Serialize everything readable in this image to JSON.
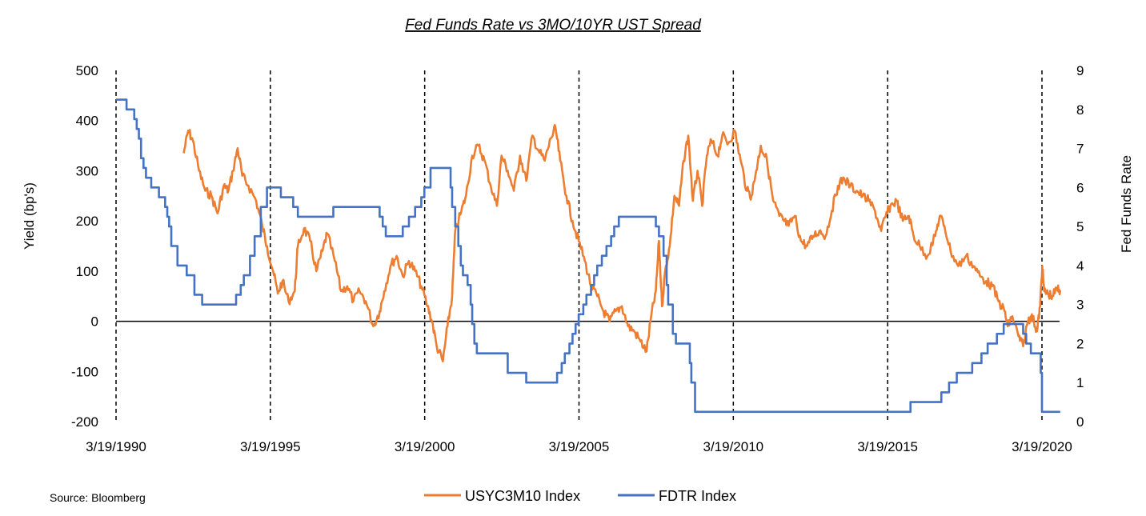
{
  "chart_data": {
    "type": "line",
    "title": "Fed Funds Rate vs 3MO/10YR UST Spread",
    "ylabel": "Yield  (bp's)",
    "y2label": "Fed Funds Rate",
    "source": "Source: Bloomberg",
    "x_range": [
      1990.21,
      2020.8
    ],
    "ylim": [
      -200,
      500
    ],
    "y_ticks": [
      500,
      400,
      300,
      200,
      100,
      0,
      -100,
      -200
    ],
    "y2lim": [
      0,
      9
    ],
    "y2_ticks": [
      9,
      8,
      7,
      6,
      5,
      4,
      3,
      2,
      1,
      0
    ],
    "x_ticks": [
      {
        "label": "3/19/1990",
        "value": 1990.21
      },
      {
        "label": "3/19/1995",
        "value": 1995.21
      },
      {
        "label": "3/19/2000",
        "value": 2000.21
      },
      {
        "label": "3/19/2005",
        "value": 2005.21
      },
      {
        "label": "3/19/2010",
        "value": 2010.21
      },
      {
        "label": "3/19/2015",
        "value": 2015.21
      },
      {
        "label": "3/19/2020",
        "value": 2020.21
      }
    ],
    "vertical_dashed_lines_at": [
      1990.21,
      1995.21,
      2000.21,
      2005.21,
      2010.21,
      2015.21,
      2020.21
    ],
    "zero_line": 0,
    "legend": [
      "USYC3M10 Index",
      "FDTR Index"
    ],
    "legend_position": "bottom-center",
    "series": [
      {
        "name": "USYC3M10 Index",
        "axis": "left",
        "color": "#ED7D31",
        "points": [
          [
            1992.4,
            335
          ],
          [
            1992.55,
            380
          ],
          [
            1992.7,
            360
          ],
          [
            1992.9,
            300
          ],
          [
            1993.1,
            260
          ],
          [
            1993.3,
            250
          ],
          [
            1993.5,
            215
          ],
          [
            1993.7,
            270
          ],
          [
            1993.85,
            260
          ],
          [
            1994.0,
            300
          ],
          [
            1994.15,
            345
          ],
          [
            1994.3,
            290
          ],
          [
            1994.5,
            270
          ],
          [
            1994.75,
            240
          ],
          [
            1994.95,
            190
          ],
          [
            1995.1,
            150
          ],
          [
            1995.3,
            100
          ],
          [
            1995.45,
            55
          ],
          [
            1995.6,
            80
          ],
          [
            1995.8,
            40
          ],
          [
            1996.0,
            60
          ],
          [
            1996.1,
            150
          ],
          [
            1996.3,
            185
          ],
          [
            1996.5,
            160
          ],
          [
            1996.7,
            100
          ],
          [
            1996.9,
            140
          ],
          [
            1997.05,
            175
          ],
          [
            1997.3,
            120
          ],
          [
            1997.5,
            60
          ],
          [
            1997.7,
            70
          ],
          [
            1997.9,
            40
          ],
          [
            1998.1,
            60
          ],
          [
            1998.3,
            40
          ],
          [
            1998.55,
            -10
          ],
          [
            1998.75,
            20
          ],
          [
            1998.9,
            60
          ],
          [
            1999.1,
            110
          ],
          [
            1999.3,
            130
          ],
          [
            1999.5,
            90
          ],
          [
            1999.7,
            120
          ],
          [
            1999.9,
            100
          ],
          [
            2000.1,
            70
          ],
          [
            2000.3,
            30
          ],
          [
            2000.45,
            0
          ],
          [
            2000.6,
            -50
          ],
          [
            2000.8,
            -80
          ],
          [
            2000.95,
            -10
          ],
          [
            2001.1,
            50
          ],
          [
            2001.2,
            180
          ],
          [
            2001.4,
            220
          ],
          [
            2001.55,
            250
          ],
          [
            2001.75,
            330
          ],
          [
            2001.95,
            350
          ],
          [
            2002.15,
            320
          ],
          [
            2002.35,
            270
          ],
          [
            2002.55,
            230
          ],
          [
            2002.7,
            330
          ],
          [
            2002.9,
            300
          ],
          [
            2003.1,
            260
          ],
          [
            2003.3,
            330
          ],
          [
            2003.5,
            280
          ],
          [
            2003.7,
            370
          ],
          [
            2003.9,
            340
          ],
          [
            2004.1,
            320
          ],
          [
            2004.3,
            365
          ],
          [
            2004.45,
            385
          ],
          [
            2004.6,
            320
          ],
          [
            2004.8,
            250
          ],
          [
            2005.0,
            200
          ],
          [
            2005.2,
            160
          ],
          [
            2005.4,
            120
          ],
          [
            2005.6,
            70
          ],
          [
            2005.8,
            50
          ],
          [
            2006.0,
            20
          ],
          [
            2006.2,
            0
          ],
          [
            2006.4,
            20
          ],
          [
            2006.6,
            30
          ],
          [
            2006.8,
            -10
          ],
          [
            2007.0,
            -20
          ],
          [
            2007.2,
            -40
          ],
          [
            2007.4,
            -60
          ],
          [
            2007.55,
            10
          ],
          [
            2007.7,
            60
          ],
          [
            2007.8,
            160
          ],
          [
            2007.9,
            30
          ],
          [
            2008.0,
            100
          ],
          [
            2008.15,
            150
          ],
          [
            2008.3,
            250
          ],
          [
            2008.45,
            230
          ],
          [
            2008.6,
            320
          ],
          [
            2008.75,
            370
          ],
          [
            2008.9,
            240
          ],
          [
            2009.05,
            300
          ],
          [
            2009.2,
            230
          ],
          [
            2009.35,
            330
          ],
          [
            2009.5,
            360
          ],
          [
            2009.7,
            330
          ],
          [
            2009.85,
            370
          ],
          [
            2010.05,
            355
          ],
          [
            2010.25,
            380
          ],
          [
            2010.45,
            320
          ],
          [
            2010.65,
            260
          ],
          [
            2010.8,
            250
          ],
          [
            2010.95,
            300
          ],
          [
            2011.1,
            350
          ],
          [
            2011.3,
            320
          ],
          [
            2011.5,
            240
          ],
          [
            2011.7,
            210
          ],
          [
            2011.85,
            200
          ],
          [
            2012.0,
            190
          ],
          [
            2012.2,
            210
          ],
          [
            2012.4,
            160
          ],
          [
            2012.6,
            150
          ],
          [
            2012.8,
            170
          ],
          [
            2013.0,
            180
          ],
          [
            2013.2,
            170
          ],
          [
            2013.4,
            220
          ],
          [
            2013.6,
            270
          ],
          [
            2013.8,
            285
          ],
          [
            2014.0,
            270
          ],
          [
            2014.2,
            260
          ],
          [
            2014.4,
            250
          ],
          [
            2014.6,
            240
          ],
          [
            2014.8,
            220
          ],
          [
            2015.0,
            180
          ],
          [
            2015.15,
            210
          ],
          [
            2015.3,
            230
          ],
          [
            2015.5,
            240
          ],
          [
            2015.7,
            200
          ],
          [
            2015.9,
            210
          ],
          [
            2016.05,
            170
          ],
          [
            2016.25,
            150
          ],
          [
            2016.5,
            130
          ],
          [
            2016.75,
            170
          ],
          [
            2016.9,
            210
          ],
          [
            2017.05,
            190
          ],
          [
            2017.25,
            140
          ],
          [
            2017.5,
            110
          ],
          [
            2017.75,
            130
          ],
          [
            2018.0,
            110
          ],
          [
            2018.2,
            90
          ],
          [
            2018.4,
            80
          ],
          [
            2018.6,
            70
          ],
          [
            2018.8,
            40
          ],
          [
            2019.0,
            20
          ],
          [
            2019.1,
            -10
          ],
          [
            2019.25,
            10
          ],
          [
            2019.45,
            -30
          ],
          [
            2019.6,
            -50
          ],
          [
            2019.75,
            0
          ],
          [
            2019.85,
            10
          ],
          [
            2019.95,
            0
          ],
          [
            2020.05,
            -20
          ],
          [
            2020.15,
            30
          ],
          [
            2020.22,
            110
          ],
          [
            2020.28,
            60
          ],
          [
            2020.4,
            55
          ],
          [
            2020.55,
            50
          ],
          [
            2020.7,
            65
          ],
          [
            2020.8,
            62
          ]
        ]
      },
      {
        "name": "FDTR Index",
        "axis": "right",
        "color": "#4472C4",
        "steps": [
          [
            1990.0,
            8.25
          ],
          [
            1990.55,
            8.0
          ],
          [
            1990.8,
            7.75
          ],
          [
            1990.88,
            7.5
          ],
          [
            1990.95,
            7.25
          ],
          [
            1991.02,
            6.75
          ],
          [
            1991.1,
            6.5
          ],
          [
            1991.18,
            6.25
          ],
          [
            1991.35,
            6.0
          ],
          [
            1991.6,
            5.75
          ],
          [
            1991.8,
            5.5
          ],
          [
            1991.87,
            5.25
          ],
          [
            1991.93,
            5.0
          ],
          [
            1992.0,
            4.5
          ],
          [
            1992.2,
            4.0
          ],
          [
            1992.5,
            3.75
          ],
          [
            1992.75,
            3.25
          ],
          [
            1993.0,
            3.0
          ],
          [
            1994.1,
            3.25
          ],
          [
            1994.25,
            3.5
          ],
          [
            1994.35,
            3.75
          ],
          [
            1994.55,
            4.25
          ],
          [
            1994.7,
            4.75
          ],
          [
            1994.9,
            5.5
          ],
          [
            1995.1,
            6.0
          ],
          [
            1995.55,
            5.75
          ],
          [
            1995.95,
            5.5
          ],
          [
            1996.1,
            5.25
          ],
          [
            1997.25,
            5.5
          ],
          [
            1998.75,
            5.25
          ],
          [
            1998.85,
            5.0
          ],
          [
            1998.95,
            4.75
          ],
          [
            1999.5,
            5.0
          ],
          [
            1999.7,
            5.25
          ],
          [
            1999.9,
            5.5
          ],
          [
            2000.1,
            5.75
          ],
          [
            2000.2,
            6.0
          ],
          [
            2000.4,
            6.5
          ],
          [
            2001.05,
            6.0
          ],
          [
            2001.1,
            5.5
          ],
          [
            2001.2,
            5.0
          ],
          [
            2001.3,
            4.5
          ],
          [
            2001.38,
            4.0
          ],
          [
            2001.45,
            3.75
          ],
          [
            2001.6,
            3.5
          ],
          [
            2001.7,
            3.0
          ],
          [
            2001.75,
            2.5
          ],
          [
            2001.82,
            2.0
          ],
          [
            2001.9,
            1.75
          ],
          [
            2002.9,
            1.25
          ],
          [
            2003.5,
            1.0
          ],
          [
            2004.5,
            1.25
          ],
          [
            2004.65,
            1.5
          ],
          [
            2004.75,
            1.75
          ],
          [
            2004.9,
            2.0
          ],
          [
            2005.0,
            2.25
          ],
          [
            2005.1,
            2.5
          ],
          [
            2005.2,
            2.75
          ],
          [
            2005.35,
            3.0
          ],
          [
            2005.45,
            3.25
          ],
          [
            2005.6,
            3.5
          ],
          [
            2005.7,
            3.75
          ],
          [
            2005.8,
            4.0
          ],
          [
            2005.95,
            4.25
          ],
          [
            2006.1,
            4.5
          ],
          [
            2006.25,
            4.75
          ],
          [
            2006.35,
            5.0
          ],
          [
            2006.5,
            5.25
          ],
          [
            2007.7,
            5.0
          ],
          [
            2007.8,
            4.75
          ],
          [
            2007.95,
            4.25
          ],
          [
            2008.05,
            3.5
          ],
          [
            2008.1,
            3.0
          ],
          [
            2008.25,
            2.25
          ],
          [
            2008.35,
            2.0
          ],
          [
            2008.8,
            1.5
          ],
          [
            2008.85,
            1.0
          ],
          [
            2008.97,
            0.25
          ],
          [
            2015.95,
            0.5
          ],
          [
            2016.95,
            0.75
          ],
          [
            2017.2,
            1.0
          ],
          [
            2017.45,
            1.25
          ],
          [
            2017.95,
            1.5
          ],
          [
            2018.25,
            1.75
          ],
          [
            2018.45,
            2.0
          ],
          [
            2018.75,
            2.25
          ],
          [
            2018.97,
            2.5
          ],
          [
            2019.6,
            2.25
          ],
          [
            2019.7,
            2.0
          ],
          [
            2019.85,
            1.75
          ],
          [
            2020.17,
            1.25
          ],
          [
            2020.21,
            0.25
          ],
          [
            2020.8,
            0.25
          ]
        ]
      }
    ]
  }
}
